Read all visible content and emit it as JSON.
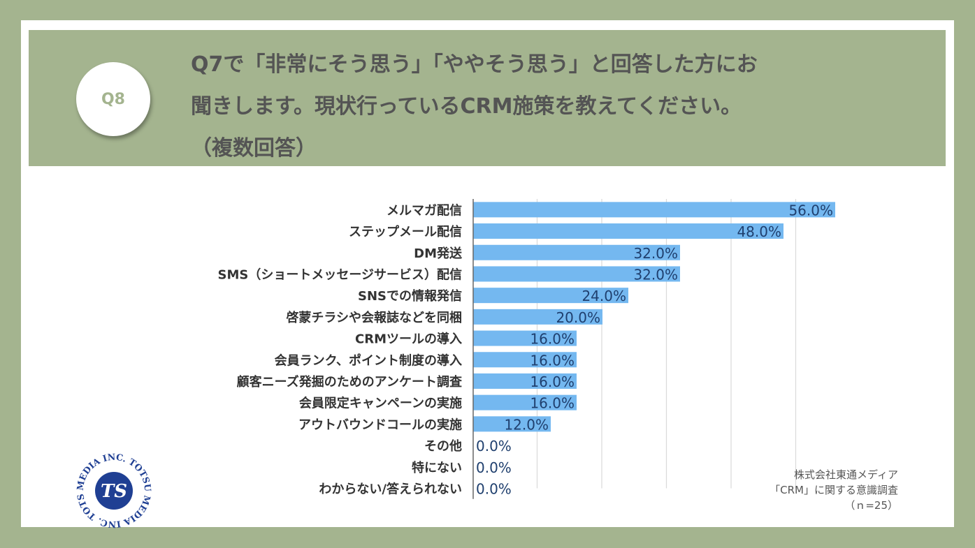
{
  "badge": "Q8",
  "question": {
    "line1": "Q7で「非常にそう思う」「ややそう思う」と回答した方にお",
    "line2": "聞きします。現状行っているCRM施策を教えてください。",
    "line3": "（複数回答）"
  },
  "chart_data": {
    "type": "bar",
    "orientation": "horizontal",
    "categories": [
      "メルマガ配信",
      "ステップメール配信",
      "DM発送",
      "SMS（ショートメッセージサービス）配信",
      "SNSでの情報発信",
      "啓蒙チラシや会報誌などを同梱",
      "CRMツールの導入",
      "会員ランク、ポイント制度の導入",
      "顧客ニーズ発掘のためのアンケート調査",
      "会員限定キャンペーンの実施",
      "アウトバウンドコールの実施",
      "その他",
      "特にない",
      "わからない/答えられない"
    ],
    "values": [
      56.0,
      48.0,
      32.0,
      32.0,
      24.0,
      20.0,
      16.0,
      16.0,
      16.0,
      16.0,
      12.0,
      0.0,
      0.0,
      0.0
    ],
    "value_labels": [
      "56.0%",
      "48.0%",
      "32.0%",
      "32.0%",
      "24.0%",
      "20.0%",
      "16.0%",
      "16.0%",
      "16.0%",
      "16.0%",
      "12.0%",
      "0.0%",
      "0.0%",
      "0.0%"
    ],
    "xlim": [
      0,
      60
    ],
    "grid": true,
    "bar_color": "#74b8f0"
  },
  "source": {
    "line1": "株式会社東通メディア",
    "line2": "「CRM」に関する意識調査",
    "line3": "（ｎ=25）"
  },
  "logo": {
    "text": "MEDIA INC. TOTSU MEDIA INC. TOTSU",
    "mark": "TS"
  }
}
